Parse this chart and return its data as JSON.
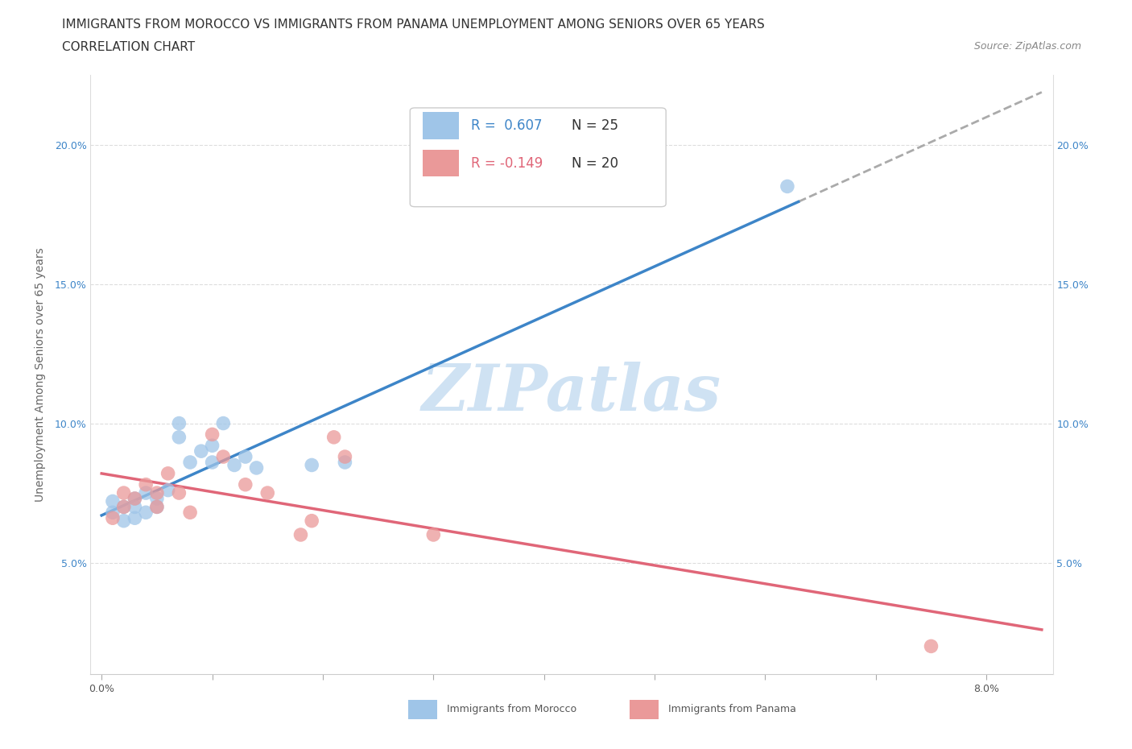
{
  "title_line1": "IMMIGRANTS FROM MOROCCO VS IMMIGRANTS FROM PANAMA UNEMPLOYMENT AMONG SENIORS OVER 65 YEARS",
  "title_line2": "CORRELATION CHART",
  "source_text": "Source: ZipAtlas.com",
  "ylabel": "Unemployment Among Seniors over 65 years",
  "xlim": [
    -0.001,
    0.086
  ],
  "ylim": [
    0.01,
    0.225
  ],
  "xticks": [
    0.0,
    0.01,
    0.02,
    0.03,
    0.04,
    0.05,
    0.06,
    0.07,
    0.08
  ],
  "xticklabels": [
    "0.0%",
    "",
    "",
    "",
    "",
    "",
    "",
    "",
    "8.0%"
  ],
  "yticks": [
    0.05,
    0.1,
    0.15,
    0.2
  ],
  "yticklabels": [
    "5.0%",
    "10.0%",
    "15.0%",
    "20.0%"
  ],
  "morocco_x": [
    0.001,
    0.001,
    0.002,
    0.002,
    0.003,
    0.003,
    0.003,
    0.004,
    0.004,
    0.005,
    0.005,
    0.006,
    0.007,
    0.007,
    0.008,
    0.009,
    0.01,
    0.01,
    0.011,
    0.012,
    0.013,
    0.014,
    0.019,
    0.022,
    0.062
  ],
  "morocco_y": [
    0.068,
    0.072,
    0.065,
    0.07,
    0.066,
    0.07,
    0.073,
    0.075,
    0.068,
    0.07,
    0.073,
    0.076,
    0.095,
    0.1,
    0.086,
    0.09,
    0.086,
    0.092,
    0.1,
    0.085,
    0.088,
    0.084,
    0.085,
    0.086,
    0.185
  ],
  "panama_x": [
    0.001,
    0.002,
    0.002,
    0.003,
    0.004,
    0.005,
    0.005,
    0.006,
    0.007,
    0.008,
    0.01,
    0.011,
    0.013,
    0.015,
    0.018,
    0.019,
    0.021,
    0.022,
    0.03,
    0.075
  ],
  "panama_y": [
    0.066,
    0.07,
    0.075,
    0.073,
    0.078,
    0.07,
    0.075,
    0.082,
    0.075,
    0.068,
    0.096,
    0.088,
    0.078,
    0.075,
    0.06,
    0.065,
    0.095,
    0.088,
    0.06,
    0.02
  ],
  "morocco_color": "#9fc5e8",
  "panama_color": "#ea9999",
  "morocco_line_color": "#3d85c8",
  "panama_line_color": "#e06678",
  "dashed_line_color": "#aaaaaa",
  "watermark_color": "#cfe2f3",
  "legend_r_morocco": "R =  0.607",
  "legend_n_morocco": "N = 25",
  "legend_r_panama": "R = -0.149",
  "legend_n_panama": "N = 20",
  "title_fontsize": 11,
  "subtitle_fontsize": 11,
  "source_fontsize": 9,
  "axis_label_fontsize": 10,
  "tick_fontsize": 9,
  "legend_fontsize": 12
}
